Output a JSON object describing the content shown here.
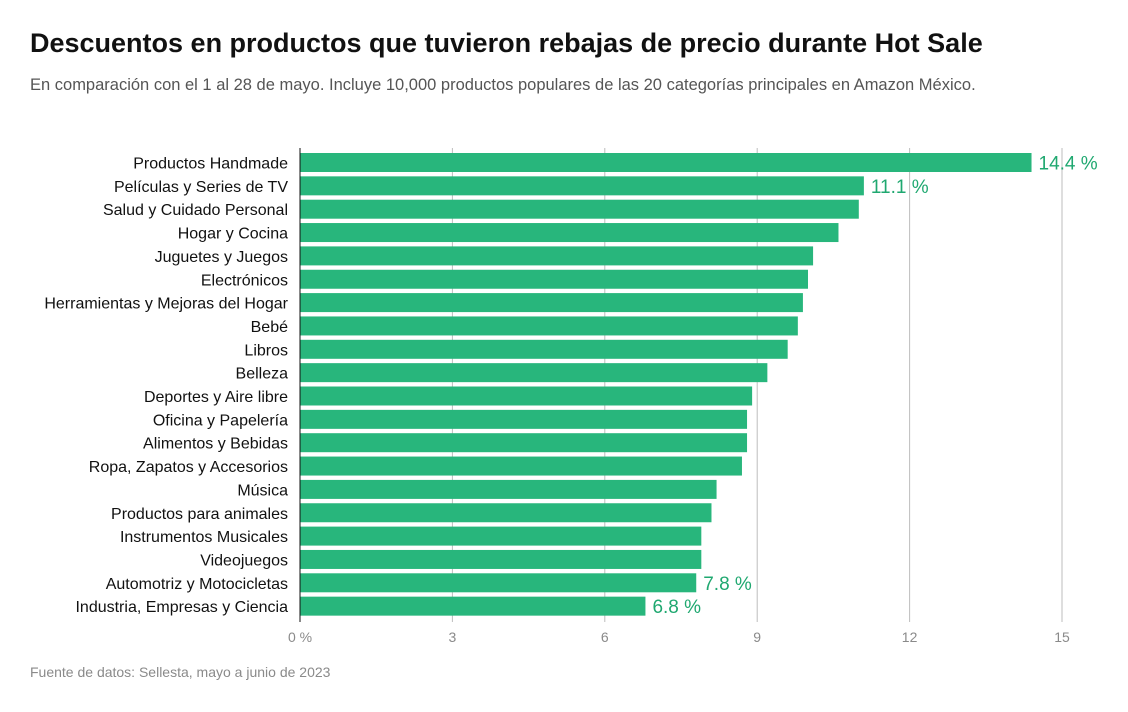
{
  "header": {
    "title": "Descuentos en productos que tuvieron rebajas de precio durante Hot Sale",
    "subtitle": "En comparación con el 1 al 28 de mayo. Incluye 10,000 productos populares de las 20 categorías principales en Amazon México."
  },
  "footer": {
    "source": "Fuente de datos: Sellesta, mayo a junio de 2023"
  },
  "colors": {
    "bar": "#28b67c",
    "label": "#1fa870",
    "grid": "#bdbdbd"
  },
  "chart_data": {
    "type": "bar",
    "orientation": "horizontal",
    "title": "Descuentos en productos que tuvieron rebajas de precio durante Hot Sale",
    "subtitle": "En comparación con el 1 al 28 de mayo. Incluye 10,000 productos populares de las 20 categorías principales en Amazon México.",
    "categories": [
      "Productos Handmade",
      "Películas y Series de TV",
      "Salud y Cuidado Personal",
      "Hogar y Cocina",
      "Juguetes y Juegos",
      "Electrónicos",
      "Herramientas y Mejoras del Hogar",
      "Bebé",
      "Libros",
      "Belleza",
      "Deportes y Aire libre",
      "Oficina y Papelería",
      "Alimentos y Bebidas",
      "Ropa, Zapatos y Accesorios",
      "Música",
      "Productos para animales",
      "Instrumentos Musicales",
      "Videojuegos",
      "Automotriz y Motocicletas",
      "Industria, Empresas y Ciencia"
    ],
    "values": [
      14.4,
      11.1,
      11.0,
      10.6,
      10.1,
      10.0,
      9.9,
      9.8,
      9.6,
      9.2,
      8.9,
      8.8,
      8.8,
      8.7,
      8.2,
      8.1,
      7.9,
      7.9,
      7.8,
      6.8
    ],
    "data_labels": [
      {
        "index": 0,
        "text": "14.4 %"
      },
      {
        "index": 1,
        "text": "11.1 %"
      },
      {
        "index": 18,
        "text": "7.8 %"
      },
      {
        "index": 19,
        "text": "6.8 %"
      }
    ],
    "x_ticks": [
      {
        "value": 0,
        "label": "0 %"
      },
      {
        "value": 3,
        "label": "3"
      },
      {
        "value": 6,
        "label": "6"
      },
      {
        "value": 9,
        "label": "9"
      },
      {
        "value": 12,
        "label": "12"
      },
      {
        "value": 15,
        "label": "15"
      }
    ],
    "xlim": [
      0,
      15
    ],
    "grid": true
  }
}
